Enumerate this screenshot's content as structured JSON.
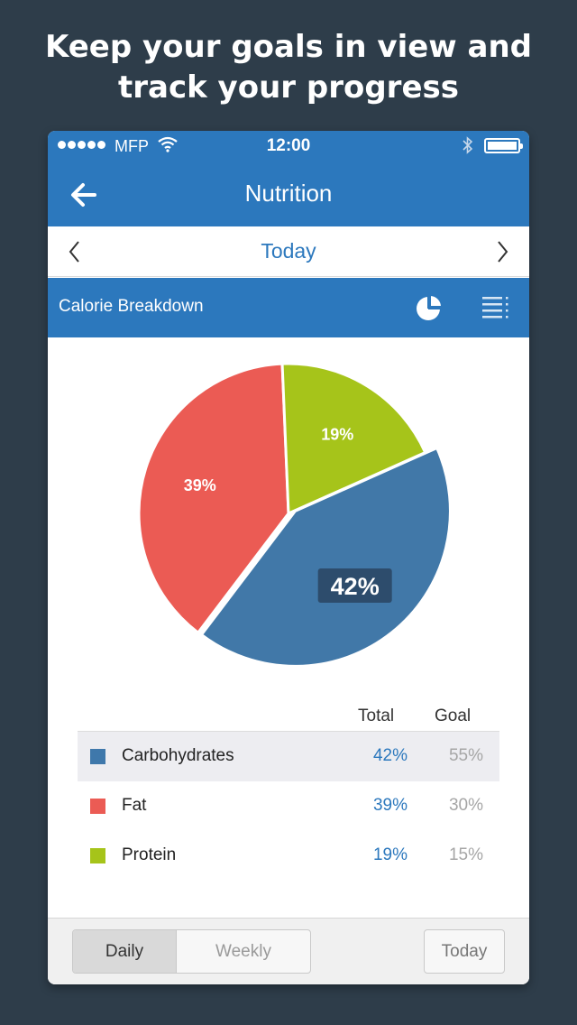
{
  "headline": {
    "line1": "Keep your goals in view and",
    "line2": "track your progress"
  },
  "status_bar": {
    "carrier": "MFP",
    "time": "12:00",
    "icons": [
      "signal-dots-icon",
      "wifi-icon",
      "bluetooth-icon",
      "battery-icon"
    ]
  },
  "nav": {
    "title": "Nutrition",
    "back_icon": "back-arrow-icon"
  },
  "date_nav": {
    "label": "Today",
    "prev_icon": "chevron-left-icon",
    "next_icon": "chevron-right-icon"
  },
  "section": {
    "title": "Calorie Breakdown",
    "view_icons": [
      "pie-chart-icon",
      "list-view-icon"
    ]
  },
  "chart_data": {
    "type": "pie",
    "slices": [
      {
        "label": "Carbohydrates",
        "value": 42,
        "display": "42%",
        "color": "#4178a8"
      },
      {
        "label": "Fat",
        "value": 39,
        "display": "39%",
        "color": "#eb5b54"
      },
      {
        "label": "Protein",
        "value": 19,
        "display": "19%",
        "color": "#a6c41a"
      }
    ],
    "highlighted": "Carbohydrates"
  },
  "table": {
    "headers": {
      "total": "Total",
      "goal": "Goal"
    },
    "rows": [
      {
        "name": "Carbohydrates",
        "total": "42%",
        "goal": "55%",
        "color": "#3f78ab"
      },
      {
        "name": "Fat",
        "total": "39%",
        "goal": "30%",
        "color": "#eb5b54"
      },
      {
        "name": "Protein",
        "total": "19%",
        "goal": "15%",
        "color": "#a6c41a"
      }
    ]
  },
  "footer": {
    "segments": [
      "Daily",
      "Weekly"
    ],
    "selected": "Daily",
    "today_button": "Today"
  },
  "colors": {
    "background": "#2e3d4a",
    "brand_blue": "#2c78bd",
    "carbs": "#4178a8",
    "fat": "#eb5b54",
    "protein": "#a6c41a"
  }
}
